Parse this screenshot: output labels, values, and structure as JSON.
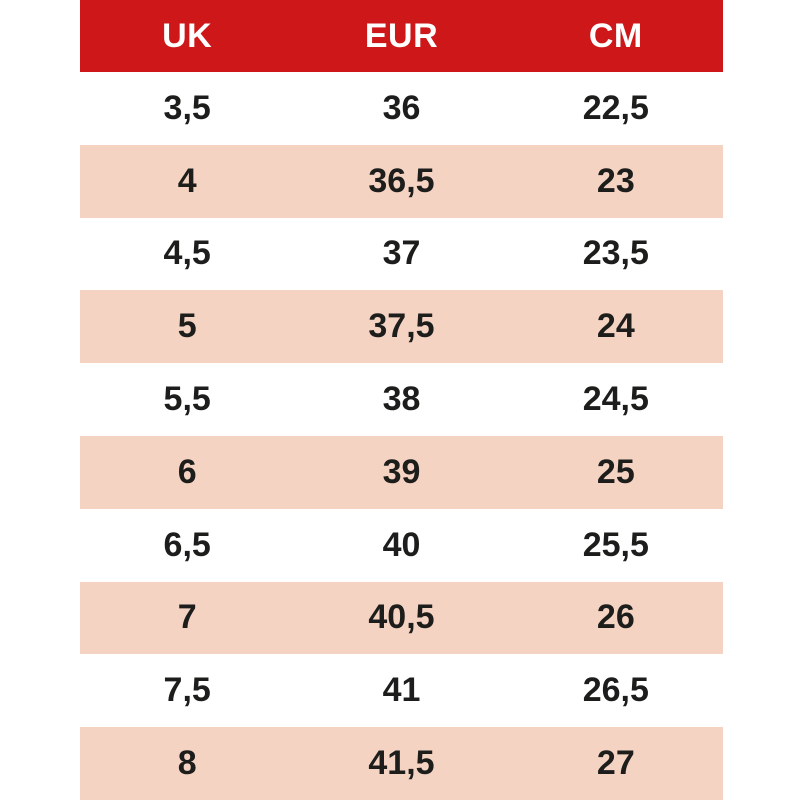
{
  "chart_data": {
    "type": "table",
    "columns": [
      "UK",
      "EUR",
      "CM"
    ],
    "rows": [
      [
        "3,5",
        "36",
        "22,5"
      ],
      [
        "4",
        "36,5",
        "23"
      ],
      [
        "4,5",
        "37",
        "23,5"
      ],
      [
        "5",
        "37,5",
        "24"
      ],
      [
        "5,5",
        "38",
        "24,5"
      ],
      [
        "6",
        "39",
        "25"
      ],
      [
        "6,5",
        "40",
        "25,5"
      ],
      [
        "7",
        "40,5",
        "26"
      ],
      [
        "7,5",
        "41",
        "26,5"
      ],
      [
        "8",
        "41,5",
        "27"
      ]
    ],
    "layout": {
      "header_position": "top",
      "striped": true,
      "stripe_pattern": "even rows pink starting from second data row",
      "grid": false
    }
  },
  "colors": {
    "header_bg": "#cd1719",
    "header_text": "#ffffff",
    "stripe_bg": "#f5d3c3",
    "row_bg": "#ffffff",
    "cell_text": "#1d1d1b",
    "page_bg": "#ffffff"
  }
}
